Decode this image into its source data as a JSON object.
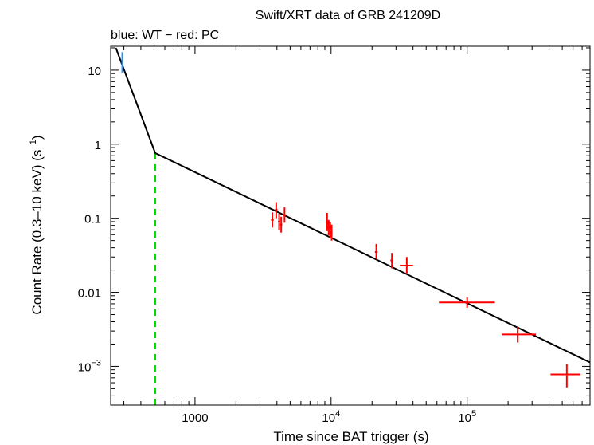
{
  "chart_data": {
    "type": "scatter",
    "title": "Swift/XRT data of GRB 241209D",
    "subtitle": "blue: WT − red: PC",
    "xlabel": "Time since BAT trigger (s)",
    "ylabel_main": "Count Rate (0.3–10 keV) (s",
    "ylabel_exp": "−1",
    "ylabel_close": ")",
    "xscale": "log",
    "yscale": "log",
    "xlim": [
      240,
      800000
    ],
    "ylim": [
      0.0003,
      21
    ],
    "x_ticks": [
      {
        "value": 1000,
        "base": "1000",
        "exp": ""
      },
      {
        "value": 10000,
        "base": "10",
        "exp": "4"
      },
      {
        "value": 100000,
        "base": "10",
        "exp": "5"
      }
    ],
    "y_ticks": [
      {
        "value": 10,
        "base": "10",
        "exp": ""
      },
      {
        "value": 1,
        "base": "1",
        "exp": ""
      },
      {
        "value": 0.1,
        "base": "0.1",
        "exp": ""
      },
      {
        "value": 0.01,
        "base": "0.01",
        "exp": ""
      },
      {
        "value": 0.001,
        "base": "10",
        "exp": "−3"
      }
    ],
    "series": [
      {
        "name": "WT",
        "color": "#1e90ff",
        "points": [
          {
            "x": 292,
            "y": 13,
            "xerr": [
              289,
              295
            ],
            "yerr": [
              9.3,
              17.5
            ]
          }
        ]
      },
      {
        "name": "PC",
        "color": "#ff0000",
        "points": [
          {
            "x": 3700,
            "y": 0.095,
            "xerr": [
              3620,
              3790
            ],
            "yerr": [
              0.075,
              0.12
            ]
          },
          {
            "x": 3950,
            "y": 0.13,
            "xerr": [
              3870,
              4040
            ],
            "yerr": [
              0.1,
              0.165
            ]
          },
          {
            "x": 4150,
            "y": 0.09,
            "xerr": [
              4070,
              4230
            ],
            "yerr": [
              0.07,
              0.115
            ]
          },
          {
            "x": 4300,
            "y": 0.082,
            "xerr": [
              4220,
              4380
            ],
            "yerr": [
              0.064,
              0.105
            ]
          },
          {
            "x": 4550,
            "y": 0.11,
            "xerr": [
              4460,
              4640
            ],
            "yerr": [
              0.087,
              0.14
            ]
          },
          {
            "x": 9350,
            "y": 0.085,
            "xerr": [
              9200,
              9500
            ],
            "yerr": [
              0.067,
              0.118
            ]
          },
          {
            "x": 9600,
            "y": 0.075,
            "xerr": [
              9450,
              9750
            ],
            "yerr": [
              0.059,
              0.095
            ]
          },
          {
            "x": 9850,
            "y": 0.068,
            "xerr": [
              9700,
              10000
            ],
            "yerr": [
              0.054,
              0.088
            ]
          },
          {
            "x": 10100,
            "y": 0.064,
            "xerr": [
              9950,
              10250
            ],
            "yerr": [
              0.05,
              0.082
            ]
          },
          {
            "x": 21500,
            "y": 0.035,
            "xerr": [
              21000,
              22000
            ],
            "yerr": [
              0.028,
              0.045
            ]
          },
          {
            "x": 28000,
            "y": 0.027,
            "xerr": [
              27300,
              28700
            ],
            "yerr": [
              0.021,
              0.034
            ]
          },
          {
            "x": 36000,
            "y": 0.023,
            "xerr": [
              32000,
              40000
            ],
            "yerr": [
              0.018,
              0.03
            ]
          },
          {
            "x": 100000,
            "y": 0.0073,
            "xerr": [
              62000,
              160000
            ],
            "yerr": [
              0.0062,
              0.0085
            ]
          },
          {
            "x": 235000,
            "y": 0.0027,
            "xerr": [
              180000,
              320000
            ],
            "yerr": [
              0.0021,
              0.0034
            ]
          },
          {
            "x": 540000,
            "y": 0.00078,
            "xerr": [
              410000,
              680000
            ],
            "yerr": [
              0.00052,
              0.00108
            ]
          }
        ]
      }
    ],
    "model": {
      "color": "#000000",
      "points": [
        {
          "x": 262,
          "y": 20
        },
        {
          "x": 510,
          "y": 0.76
        },
        {
          "x": 800000,
          "y": 0.00113
        }
      ]
    },
    "break_line": {
      "x": 510,
      "color": "#00dd00"
    }
  }
}
